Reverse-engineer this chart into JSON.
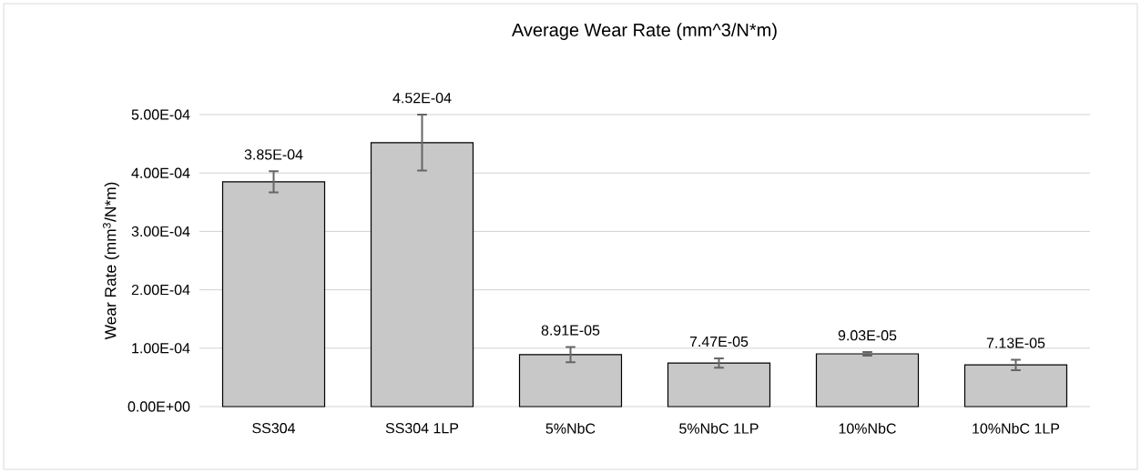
{
  "chart_data": {
    "type": "bar",
    "title": "Average Wear Rate (mm^3/N*m)",
    "ylabel": "Wear Rate (mm$^{3}$/N*m)",
    "categories": [
      "SS304",
      "SS304 1LP",
      "5%NbC",
      "5%NbC 1LP",
      "10%NbC",
      "10%NbC 1LP"
    ],
    "values": [
      0.000385,
      0.000452,
      8.91e-05,
      7.47e-05,
      9.03e-05,
      7.13e-05
    ],
    "value_labels": [
      "3.85E-04",
      "4.52E-04",
      "8.91E-05",
      "7.47E-05",
      "9.03E-05",
      "7.13E-05"
    ],
    "errors": [
      1.8e-05,
      4.8e-05,
      1.3e-05,
      8e-06,
      3e-06,
      9e-06
    ],
    "color": "#c8c8c8",
    "ylim": [
      0,
      0.0005
    ],
    "yticks": [
      {
        "value": 0,
        "label": "0.00E+00"
      },
      {
        "value": 0.0001,
        "label": "1.00E-04"
      },
      {
        "value": 0.0002,
        "label": "2.00E-04"
      },
      {
        "value": 0.0003,
        "label": "3.00E-04"
      },
      {
        "value": 0.0004,
        "label": "4.00E-04"
      },
      {
        "value": 0.0005,
        "label": "5.00E-04"
      }
    ],
    "grid": "y"
  }
}
